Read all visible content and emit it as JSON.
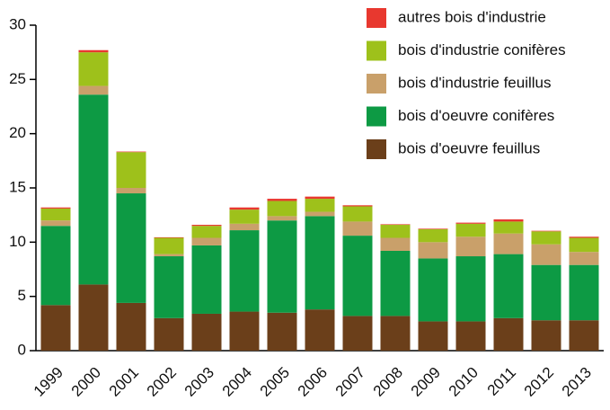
{
  "chart_data": {
    "type": "stacked-bar",
    "categories": [
      "1999",
      "2000",
      "2001",
      "2002",
      "2003",
      "2004",
      "2005",
      "2006",
      "2007",
      "2008",
      "2009",
      "2010",
      "2011",
      "2012",
      "2013"
    ],
    "series": [
      {
        "name": "bois d'oeuvre feuillus",
        "color": "#6b3f1a",
        "values": [
          4.2,
          6.1,
          4.4,
          3.0,
          3.4,
          3.6,
          3.5,
          3.8,
          3.2,
          3.2,
          2.7,
          2.7,
          3.0,
          2.8,
          2.8
        ]
      },
      {
        "name": "bois d'oeuvre conifères",
        "color": "#0d9a44",
        "values": [
          7.3,
          17.5,
          10.1,
          5.7,
          6.3,
          7.5,
          8.5,
          8.6,
          7.4,
          6.0,
          5.8,
          6.0,
          5.9,
          5.1,
          5.1
        ]
      },
      {
        "name": "bois d'industrie feuillus",
        "color": "#c9a06a",
        "values": [
          0.5,
          0.8,
          0.5,
          0.2,
          0.7,
          0.6,
          0.4,
          0.4,
          1.3,
          1.2,
          1.5,
          1.8,
          1.9,
          1.9,
          1.2
        ]
      },
      {
        "name": "bois d'industrie conifères",
        "color": "#9ec11b",
        "values": [
          1.1,
          3.1,
          3.3,
          1.5,
          1.1,
          1.3,
          1.4,
          1.2,
          1.4,
          1.2,
          1.2,
          1.2,
          1.1,
          1.2,
          1.3
        ]
      },
      {
        "name": "autres bois d'industrie",
        "color": "#e8382f",
        "values": [
          0.1,
          0.2,
          0.05,
          0.05,
          0.1,
          0.2,
          0.2,
          0.2,
          0.1,
          0.05,
          0.05,
          0.1,
          0.2,
          0.05,
          0.1
        ]
      }
    ],
    "ylim": [
      0,
      30
    ],
    "yticks": [
      0,
      5,
      10,
      15,
      20,
      25,
      30
    ],
    "legend": "upper right"
  }
}
